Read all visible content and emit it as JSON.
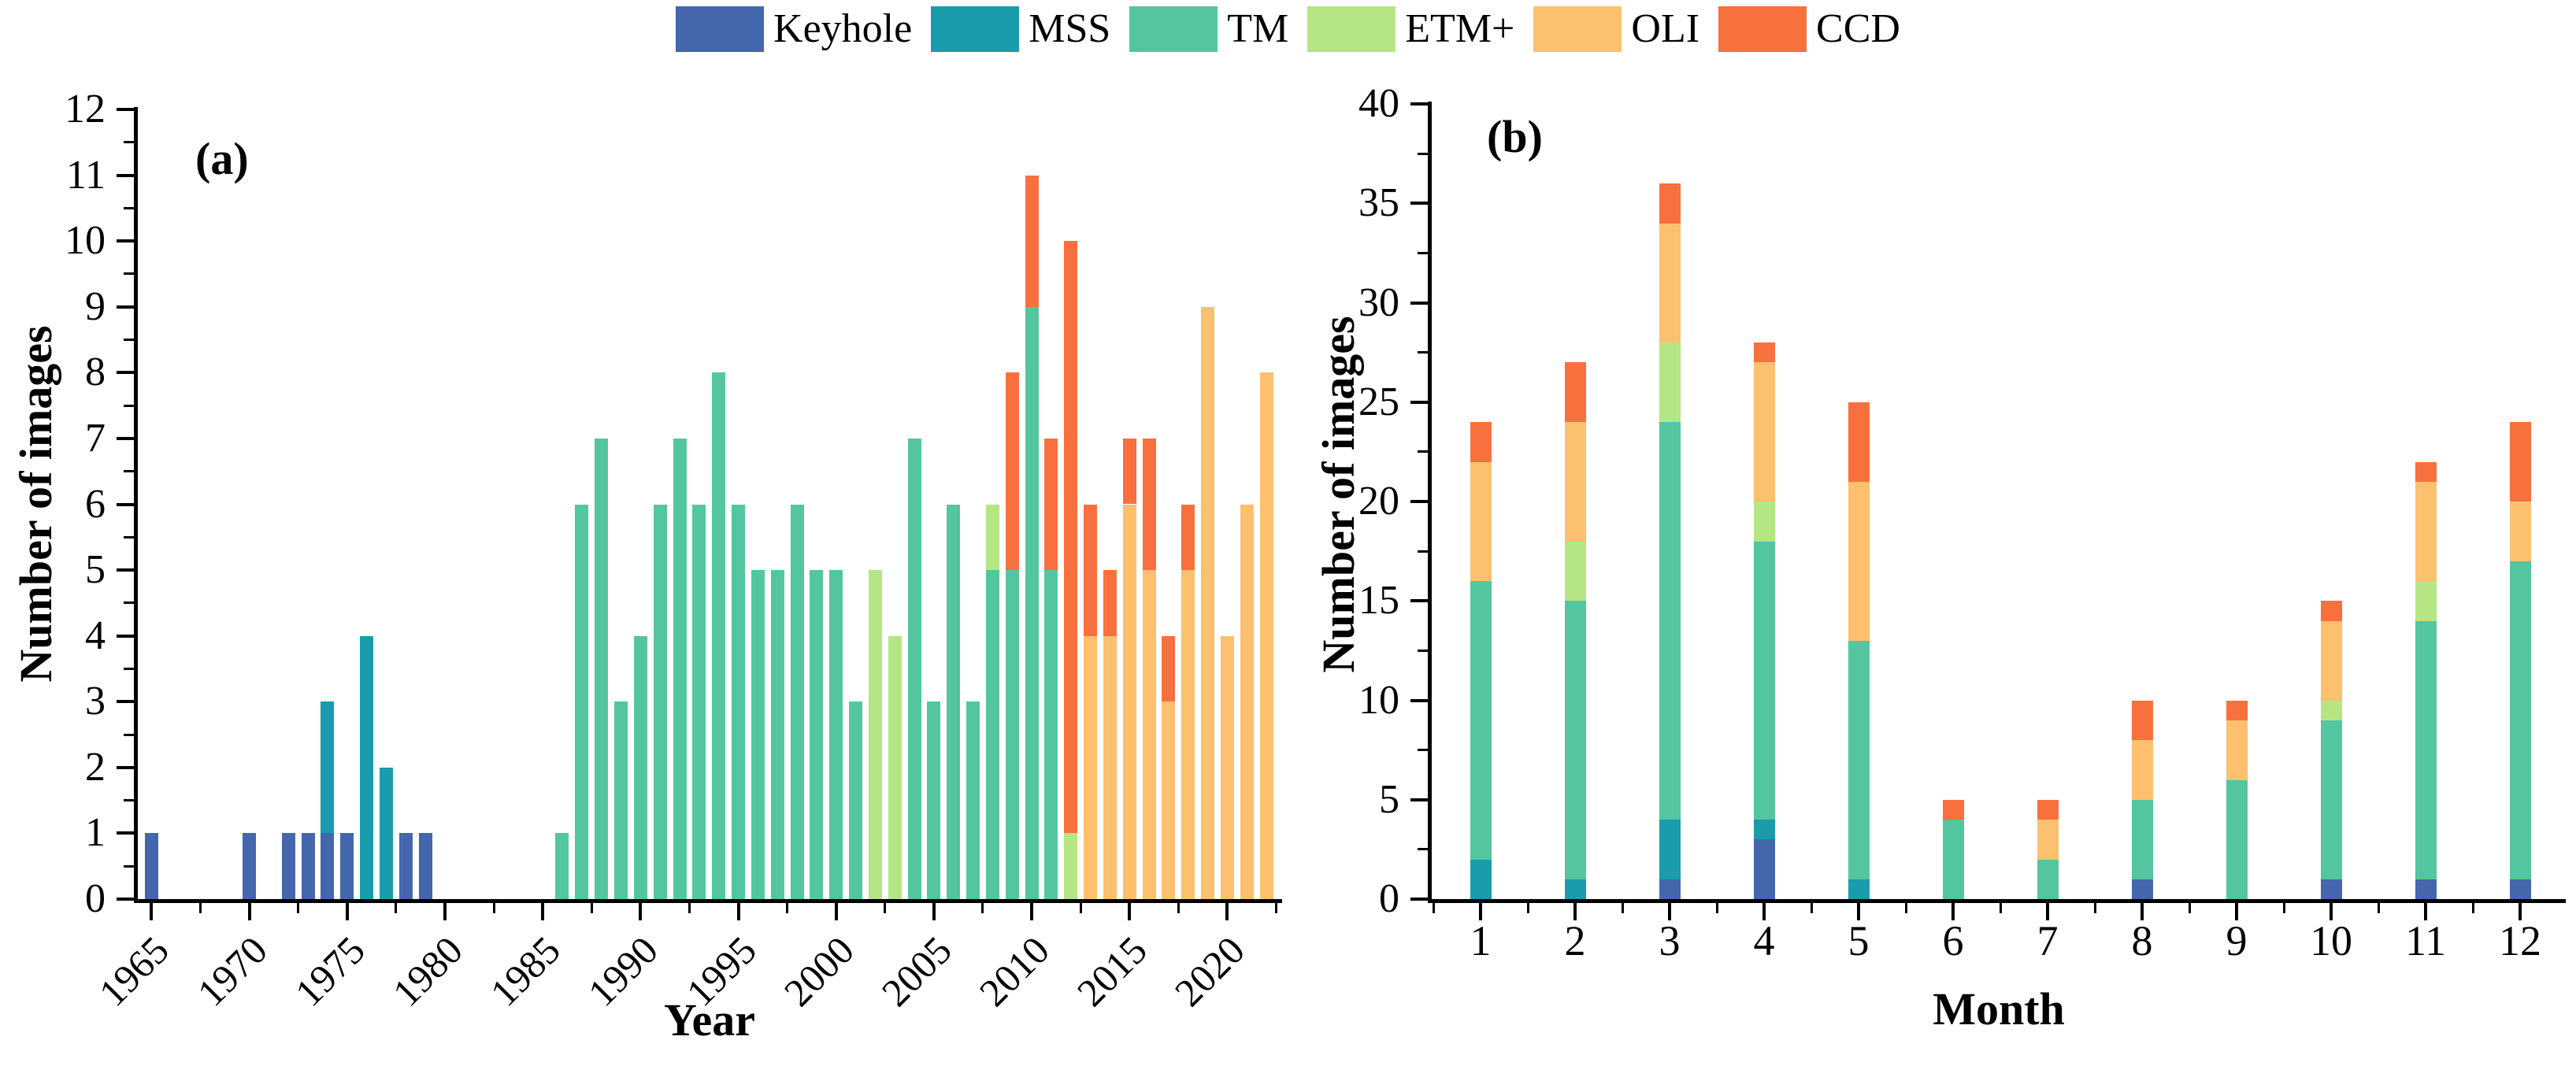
{
  "legend": {
    "items": [
      {
        "key": "keyhole",
        "label": "Keyhole",
        "color": "#4466ad"
      },
      {
        "key": "mss",
        "label": "MSS",
        "color": "#1a9cac"
      },
      {
        "key": "tm",
        "label": "TM",
        "color": "#53c6a0"
      },
      {
        "key": "etm",
        "label": "ETM+",
        "color": "#b6e584"
      },
      {
        "key": "oli",
        "label": "OLI",
        "color": "#fcc06e"
      },
      {
        "key": "ccd",
        "label": "CCD",
        "color": "#f8703e"
      }
    ]
  },
  "chart_data": [
    {
      "id": "a",
      "type": "bar",
      "stacked": true,
      "panel_label": "(a)",
      "xlabel": "Year",
      "ylabel": "Number of images",
      "ylim": [
        0,
        12
      ],
      "xlim": [
        1964.3,
        2022.8
      ],
      "yticks_major": [
        0,
        1,
        2,
        3,
        4,
        5,
        6,
        7,
        8,
        9,
        10,
        11,
        12
      ],
      "yticks_minor": [
        0.5,
        1.5,
        2.5,
        3.5,
        4.5,
        5.5,
        6.5,
        7.5,
        8.5,
        9.5,
        10.5,
        11.5
      ],
      "xticks_major": [
        1965,
        1970,
        1975,
        1980,
        1985,
        1990,
        1995,
        2000,
        2005,
        2010,
        2015,
        2020
      ],
      "xticks_minor": [
        1967.5,
        1972.5,
        1977.5,
        1982.5,
        1987.5,
        1992.5,
        1997.5,
        2002.5,
        2007.5,
        2012.5,
        2017.5,
        2022.5
      ],
      "legend_position": "top",
      "grid": false,
      "series_order": [
        "keyhole",
        "mss",
        "tm",
        "etm",
        "oli",
        "ccd"
      ],
      "bars": [
        {
          "x": 1965,
          "keyhole": 1
        },
        {
          "x": 1970,
          "keyhole": 1
        },
        {
          "x": 1972,
          "keyhole": 1
        },
        {
          "x": 1973,
          "keyhole": 1
        },
        {
          "x": 1974,
          "keyhole": 1,
          "mss": 2
        },
        {
          "x": 1975,
          "keyhole": 1
        },
        {
          "x": 1976,
          "mss": 4
        },
        {
          "x": 1977,
          "mss": 2
        },
        {
          "x": 1978,
          "keyhole": 1
        },
        {
          "x": 1979,
          "keyhole": 1
        },
        {
          "x": 1986,
          "tm": 1
        },
        {
          "x": 1987,
          "tm": 6
        },
        {
          "x": 1988,
          "tm": 7
        },
        {
          "x": 1989,
          "tm": 3
        },
        {
          "x": 1990,
          "tm": 4
        },
        {
          "x": 1991,
          "tm": 6
        },
        {
          "x": 1992,
          "tm": 7
        },
        {
          "x": 1993,
          "tm": 6
        },
        {
          "x": 1994,
          "tm": 8
        },
        {
          "x": 1995,
          "tm": 6
        },
        {
          "x": 1996,
          "tm": 5
        },
        {
          "x": 1997,
          "tm": 5
        },
        {
          "x": 1998,
          "tm": 6
        },
        {
          "x": 1999,
          "tm": 5
        },
        {
          "x": 2000,
          "tm": 5
        },
        {
          "x": 2001,
          "tm": 3
        },
        {
          "x": 2002,
          "etm": 5
        },
        {
          "x": 2003,
          "etm": 4
        },
        {
          "x": 2004,
          "tm": 7
        },
        {
          "x": 2005,
          "tm": 3
        },
        {
          "x": 2006,
          "tm": 6
        },
        {
          "x": 2007,
          "tm": 3
        },
        {
          "x": 2008,
          "tm": 5,
          "etm": 1
        },
        {
          "x": 2009,
          "tm": 5,
          "ccd": 3
        },
        {
          "x": 2010,
          "tm": 9,
          "ccd": 2
        },
        {
          "x": 2011,
          "tm": 5,
          "ccd": 2
        },
        {
          "x": 2012,
          "etm": 1,
          "ccd": 9
        },
        {
          "x": 2013,
          "oli": 4,
          "ccd": 2
        },
        {
          "x": 2014,
          "oli": 4,
          "ccd": 1
        },
        {
          "x": 2015,
          "oli": 6,
          "ccd": 1
        },
        {
          "x": 2016,
          "oli": 5,
          "ccd": 2
        },
        {
          "x": 2017,
          "oli": 3,
          "ccd": 1
        },
        {
          "x": 2018,
          "oli": 5,
          "ccd": 1
        },
        {
          "x": 2019,
          "oli": 9
        },
        {
          "x": 2020,
          "oli": 4
        },
        {
          "x": 2021,
          "oli": 6
        },
        {
          "x": 2022,
          "oli": 8
        }
      ]
    },
    {
      "id": "b",
      "type": "bar",
      "stacked": true,
      "panel_label": "(b)",
      "xlabel": "Month",
      "ylabel": "Number of images",
      "ylim": [
        0,
        40
      ],
      "xlim": [
        0.483,
        12.483
      ],
      "yticks_major": [
        0,
        5,
        10,
        15,
        20,
        25,
        30,
        35,
        40
      ],
      "yticks_minor": [
        2.5,
        7.5,
        12.5,
        17.5,
        22.5,
        27.5,
        32.5,
        37.5
      ],
      "xticks_major": [
        1,
        2,
        3,
        4,
        5,
        6,
        7,
        8,
        9,
        10,
        11,
        12
      ],
      "xticks_minor": [
        0.5,
        1.5,
        2.5,
        3.5,
        4.5,
        5.5,
        6.5,
        7.5,
        8.5,
        9.5,
        10.5,
        11.5,
        12.5
      ],
      "legend_position": "top",
      "grid": false,
      "series_order": [
        "keyhole",
        "mss",
        "tm",
        "etm",
        "oli",
        "ccd"
      ],
      "bars": [
        {
          "x": 1,
          "mss": 2,
          "tm": 14,
          "oli": 6,
          "ccd": 2
        },
        {
          "x": 2,
          "mss": 1,
          "tm": 14,
          "etm": 3,
          "oli": 6,
          "ccd": 3
        },
        {
          "x": 3,
          "keyhole": 1,
          "mss": 3,
          "tm": 20,
          "etm": 4,
          "oli": 6,
          "ccd": 2
        },
        {
          "x": 4,
          "keyhole": 3,
          "mss": 1,
          "tm": 14,
          "etm": 2,
          "oli": 7,
          "ccd": 1
        },
        {
          "x": 5,
          "mss": 1,
          "tm": 12,
          "oli": 8,
          "ccd": 4
        },
        {
          "x": 6,
          "tm": 4,
          "ccd": 1
        },
        {
          "x": 7,
          "tm": 2,
          "oli": 2,
          "ccd": 1
        },
        {
          "x": 8,
          "keyhole": 1,
          "tm": 4,
          "oli": 3,
          "ccd": 2
        },
        {
          "x": 9,
          "tm": 6,
          "oli": 3,
          "ccd": 1
        },
        {
          "x": 10,
          "keyhole": 1,
          "tm": 8,
          "etm": 1,
          "oli": 4,
          "ccd": 1
        },
        {
          "x": 11,
          "keyhole": 1,
          "tm": 13,
          "etm": 2,
          "oli": 5,
          "ccd": 1
        },
        {
          "x": 12,
          "keyhole": 1,
          "tm": 16,
          "oli": 3,
          "ccd": 4
        }
      ]
    }
  ]
}
